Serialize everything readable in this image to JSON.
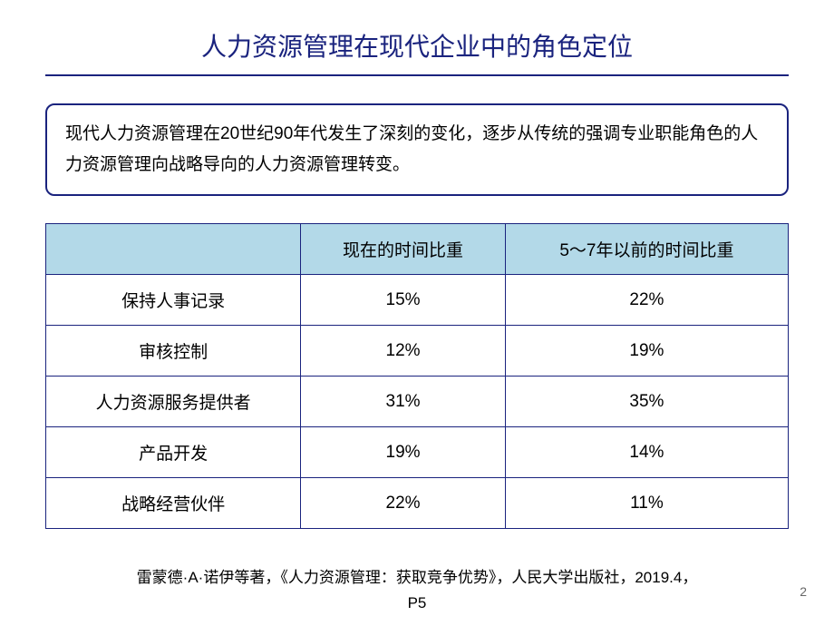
{
  "slide": {
    "title": "人力资源管理在现代企业中的角色定位",
    "description": "现代人力资源管理在20世纪90年代发生了深刻的变化，逐步从传统的强调专业职能角色的人力资源管理向战略导向的人力资源管理转变。",
    "citation_line1": "雷蒙德·A·诺伊等著，《人力资源管理：获取竞争优势》，人民大学出版社，2019.4，",
    "citation_line2": "P5",
    "page_number": "2"
  },
  "table": {
    "type": "table",
    "header_bg_color": "#b3d9e8",
    "border_color": "#1a237e",
    "columns": [
      "",
      "现在的时间比重",
      "5～7年以前的时间比重"
    ],
    "rows": [
      {
        "label": "保持人事记录",
        "current": "15%",
        "past": "22%"
      },
      {
        "label": "审核控制",
        "current": "12%",
        "past": "19%"
      },
      {
        "label": "人力资源服务提供者",
        "current": "31%",
        "past": "35%"
      },
      {
        "label": "产品开发",
        "current": "19%",
        "past": "14%"
      },
      {
        "label": "战略经营伙伴",
        "current": "22%",
        "past": "11%"
      }
    ],
    "font_size": 19,
    "cell_padding": 14
  },
  "colors": {
    "title_color": "#1a237e",
    "underline_color": "#1a237e",
    "box_border_color": "#1a237e",
    "background_color": "#ffffff",
    "text_color": "#000000"
  }
}
